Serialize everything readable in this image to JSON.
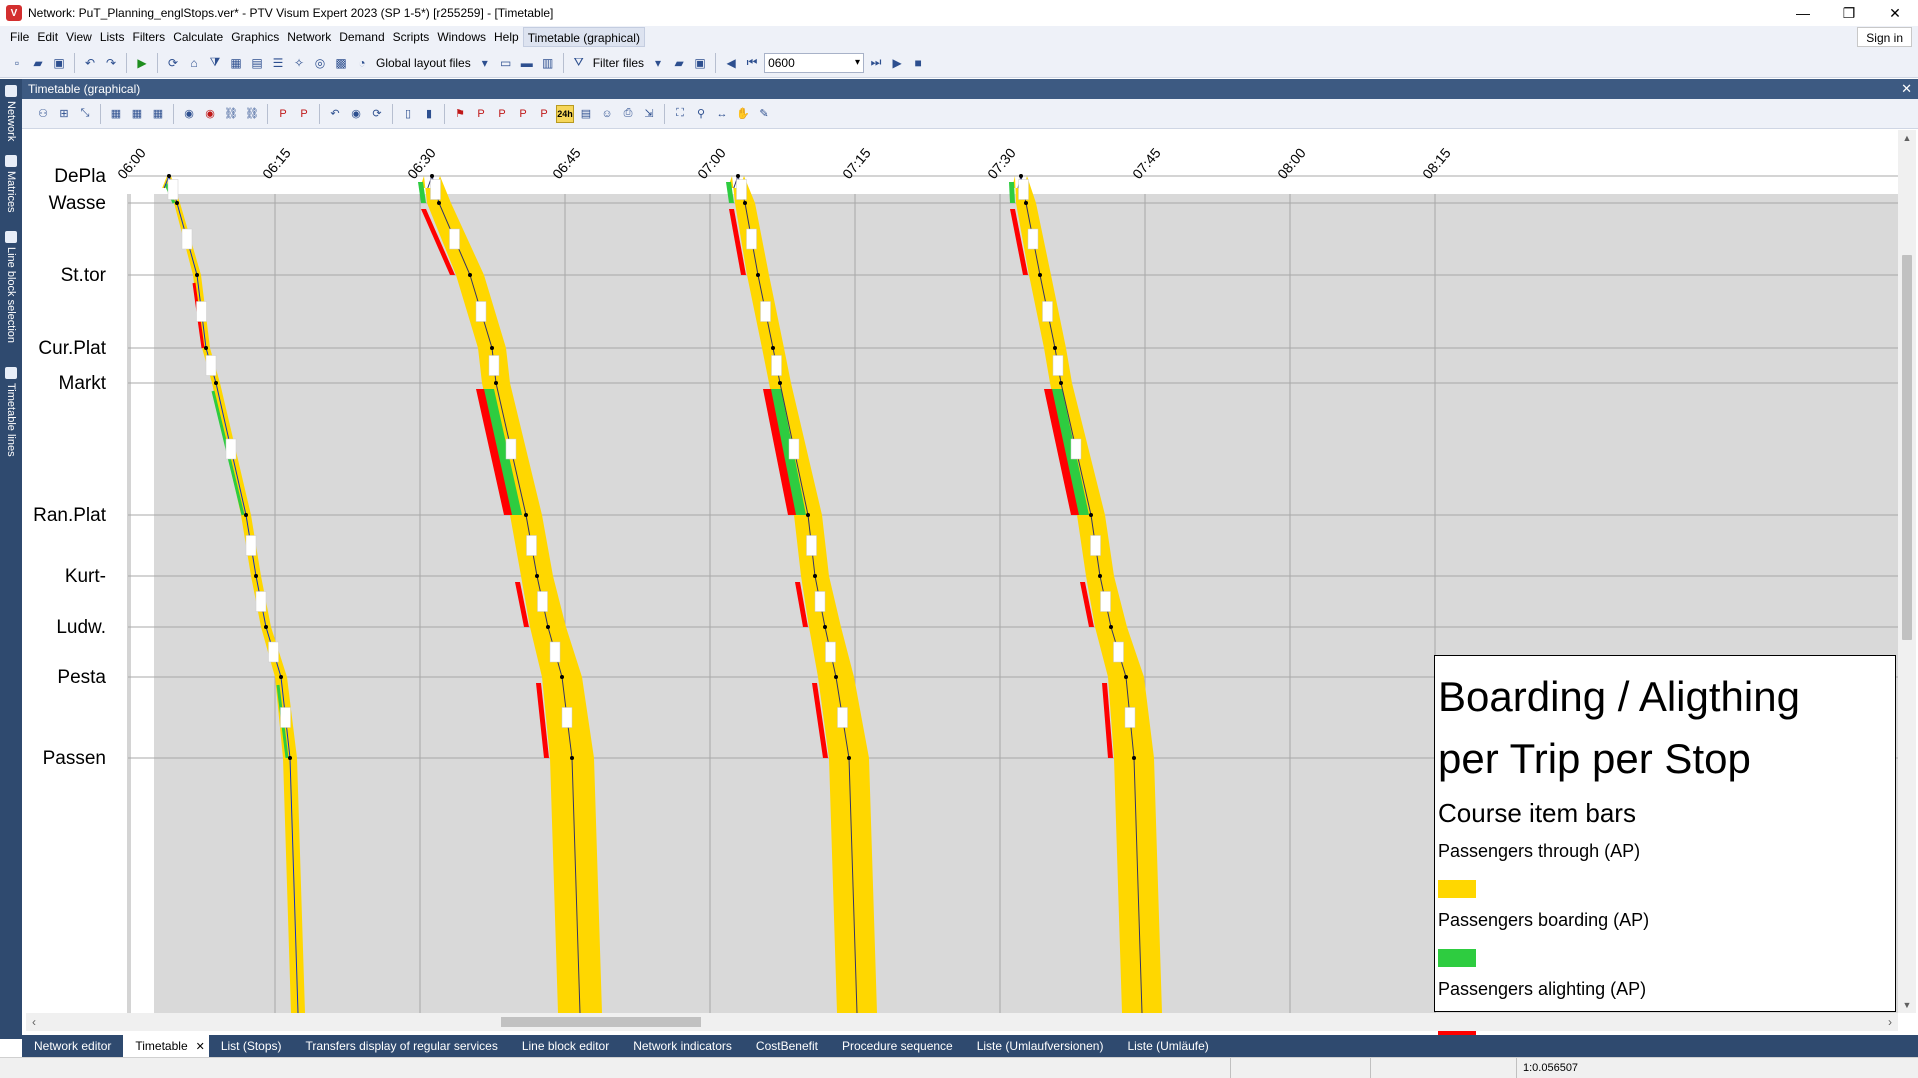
{
  "window": {
    "title": "Network: PuT_Planning_englStops.ver* - PTV Visum Expert 2023 (SP 1-5*) [r255259] - [Timetable]",
    "minimize": "—",
    "maximize": "❐",
    "close": "✕"
  },
  "menu": {
    "items": [
      "File",
      "Edit",
      "View",
      "Lists",
      "Filters",
      "Calculate",
      "Graphics",
      "Network",
      "Demand",
      "Scripts",
      "Windows",
      "Help",
      "Timetable (graphical)"
    ],
    "sign_in": "Sign in"
  },
  "toolbar": {
    "global_layout_label": "Global layout files",
    "filter_files_label": "Filter files",
    "time_value": "0600"
  },
  "left_dock": {
    "tabs": [
      "Network",
      "Matrices",
      "Line block selection",
      "Timetable lines"
    ]
  },
  "doc": {
    "title": "Timetable (graphical)",
    "close": "✕",
    "badge_24h": "24h"
  },
  "timetable": {
    "time_labels": [
      "06:00",
      "06:15",
      "06:30",
      "06:45",
      "07:00",
      "07:15",
      "07:30",
      "07:45",
      "08:00",
      "08:15"
    ],
    "stops": [
      "DePla",
      "Wasse",
      "St.tor",
      "Cur.Plat",
      "Markt",
      "Ran.Plat",
      "Kurt-",
      "Ludw.",
      "Pesta",
      "Passen"
    ]
  },
  "legend": {
    "title_line1": "Boarding / Aligthing",
    "title_line2": "per Trip per Stop",
    "subtitle": "Course item bars",
    "items": [
      {
        "label": "Passengers through (AP)",
        "color": "#ffd700"
      },
      {
        "label": "Passengers boarding (AP)",
        "color": "#2ecc40"
      },
      {
        "label": "Passengers alighting (AP)",
        "color": "#ff0000"
      }
    ]
  },
  "bottom_tabs": {
    "items": [
      "Network editor",
      "Timetable",
      "List (Stops)",
      "Transfers display of regular services",
      "Line block editor",
      "Network indicators",
      "CostBenefit",
      "Procedure sequence",
      "Liste (Umlaufversionen)",
      "Liste (Umläufe)"
    ],
    "active_index": 1,
    "close": "✕"
  },
  "status": {
    "scale": "1:0.056507"
  },
  "colors": {
    "through": "#ffd700",
    "boarding": "#2ecc40",
    "alighting": "#ff0000",
    "grid_bg": "#d9d9d9",
    "dock": "#2f4a6f"
  }
}
